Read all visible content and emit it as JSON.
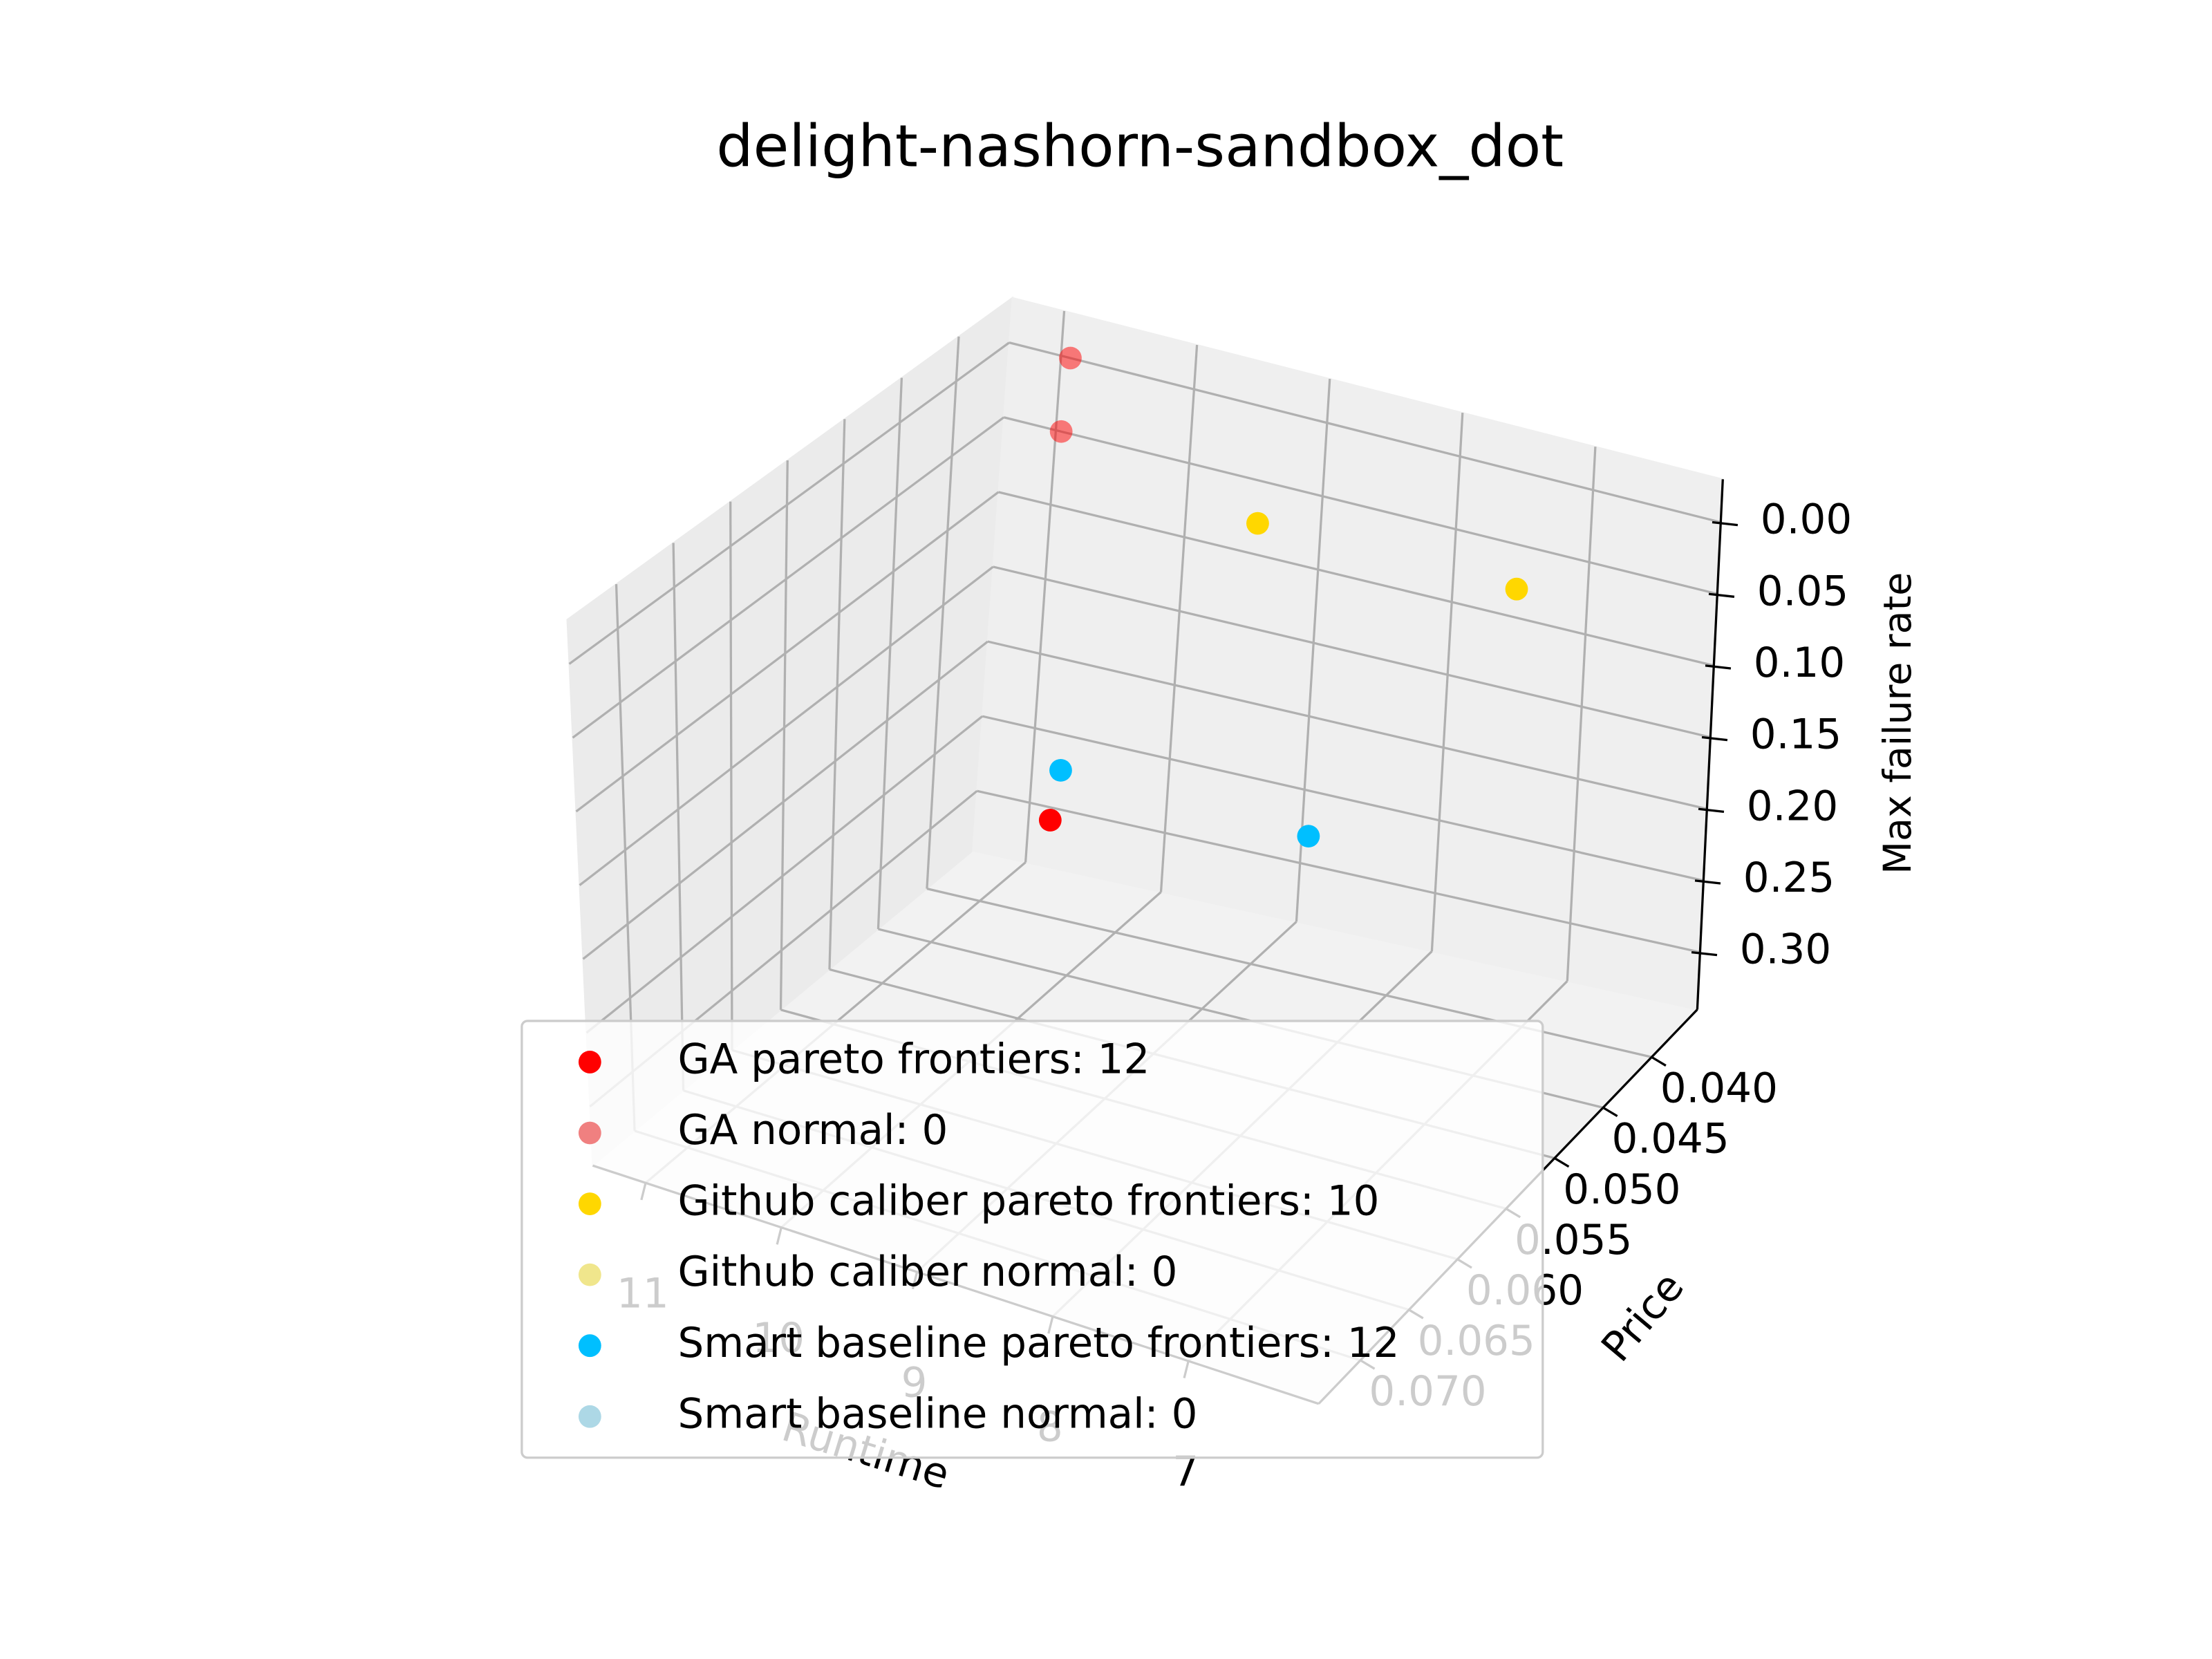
{
  "chart_data": {
    "type": "scatter3d",
    "title": "delight-nashorn-sandbox_dot",
    "xlabel": "Runtime",
    "ylabel": "Price",
    "zlabel": "Max failure rate",
    "xlim": [
      11.39,
      6.04
    ],
    "ylim": [
      0.0743,
      0.0353
    ],
    "zlim": [
      0.34,
      -0.03
    ],
    "xticks": [
      7,
      8,
      9,
      10,
      11
    ],
    "yticks": [
      {
        "value": 0.04,
        "label": "0.040"
      },
      {
        "value": 0.045,
        "label": "0.045"
      },
      {
        "value": 0.05,
        "label": "0.050"
      },
      {
        "value": 0.055,
        "label": "0.055"
      },
      {
        "value": 0.06,
        "label": "0.060"
      },
      {
        "value": 0.065,
        "label": "0.065"
      },
      {
        "value": 0.07,
        "label": "0.070"
      }
    ],
    "zticks": [
      {
        "value": 0,
        "label": "0.00"
      },
      {
        "value": 0.05,
        "label": "0.05"
      },
      {
        "value": 0.1,
        "label": "0.10"
      },
      {
        "value": 0.15,
        "label": "0.15"
      },
      {
        "value": 0.2,
        "label": "0.20"
      },
      {
        "value": 0.25,
        "label": "0.25"
      },
      {
        "value": 0.3,
        "label": "0.30"
      }
    ],
    "grid": true,
    "legend": "lower left",
    "series": [
      {
        "name": "GA pareto frontiers: 12",
        "color": "#ff0000",
        "x": [
          10.93,
          10.96,
          9.6
        ],
        "y": [
          0.0353,
          0.0353,
          0.0529
        ],
        "z": [
          0.0,
          0.05,
          0.18
        ]
      },
      {
        "name": "GA normal: 0",
        "color": "#f08080",
        "x": [],
        "y": [],
        "z": []
      },
      {
        "name": "Github caliber pareto frontiers: 10",
        "color": "#ffd700",
        "x": [
          8.89,
          7.25
        ],
        "y": [
          0.0431,
          0.0392
        ],
        "z": [
          0.02,
          0.05
        ]
      },
      {
        "name": "Github caliber normal: 0",
        "color": "#f0e68c",
        "x": [],
        "y": [],
        "z": []
      },
      {
        "name": "Smart baseline pareto frontiers: 12",
        "color": "#00bfff",
        "x": [
          9.68,
          7.59
        ],
        "y": [
          0.0509,
          0.0548
        ],
        "z": [
          0.16,
          0.13
        ]
      },
      {
        "name": "Smart baseline normal: 0",
        "color": "#add8e6",
        "x": [],
        "y": [],
        "z": []
      }
    ]
  }
}
